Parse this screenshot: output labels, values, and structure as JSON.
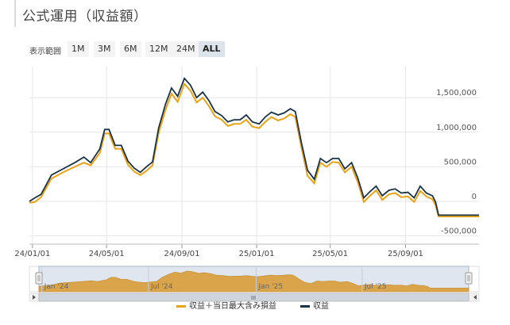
{
  "header": {
    "title": "公式運用（収益額）"
  },
  "range_selector": {
    "label": "表示範囲",
    "buttons": [
      {
        "label": "1M",
        "active": false
      },
      {
        "label": "3M",
        "active": false
      },
      {
        "label": "6M",
        "active": false
      },
      {
        "label": "12M",
        "active": false
      },
      {
        "label": "24M",
        "active": false
      },
      {
        "label": "ALL",
        "active": true
      }
    ]
  },
  "colors": {
    "profit": "#1b3346",
    "profit_with_loss": "#e8a317",
    "navigator_fill": "#d9a44a",
    "navigator_bg": "#dfe6f0"
  },
  "chart_data": {
    "type": "line",
    "title": "",
    "xlabel": "",
    "ylabel": "",
    "x_tick_labels": [
      "24/01/01",
      "24/05/01",
      "24/09/01",
      "25/01/01",
      "25/05/01",
      "25/09/01"
    ],
    "x_ticks": [
      "2024-01-01",
      "2024-05-01",
      "2024-09-01",
      "2025-01-01",
      "2025-05-01",
      "2025-09-01"
    ],
    "y_tick_labels": [
      "1,500,000",
      "1,000,000",
      "500,000",
      "0",
      "-500,000"
    ],
    "y_ticks": [
      1500000,
      1000000,
      500000,
      0,
      -500000
    ],
    "xlim": [
      "2023-12-27",
      "2025-12-30"
    ],
    "ylim": [
      -620000,
      1950000
    ],
    "legend_position": "bottom",
    "navigator_labels": [
      "Jan '24",
      "Jul '24",
      "Jan '25",
      "Jul '25"
    ],
    "navigator_scroll_glyph": "III",
    "series": [
      {
        "name": "収益",
        "dates": [
          "2023-12-27",
          "2024-01-05",
          "2024-01-15",
          "2024-02-01",
          "2024-02-20",
          "2024-03-10",
          "2024-03-25",
          "2024-04-05",
          "2024-04-20",
          "2024-04-28",
          "2024-05-05",
          "2024-05-15",
          "2024-05-25",
          "2024-06-05",
          "2024-06-15",
          "2024-06-25",
          "2024-07-05",
          "2024-07-15",
          "2024-07-25",
          "2024-08-05",
          "2024-08-15",
          "2024-08-25",
          "2024-09-05",
          "2024-09-15",
          "2024-09-25",
          "2024-10-05",
          "2024-10-15",
          "2024-10-25",
          "2024-11-05",
          "2024-11-15",
          "2024-11-25",
          "2024-12-05",
          "2024-12-15",
          "2024-12-25",
          "2025-01-05",
          "2025-01-15",
          "2025-01-25",
          "2025-02-05",
          "2025-02-15",
          "2025-02-25",
          "2025-03-05",
          "2025-03-15",
          "2025-03-25",
          "2025-04-05",
          "2025-04-15",
          "2025-04-25",
          "2025-05-05",
          "2025-05-15",
          "2025-05-25",
          "2025-06-05",
          "2025-06-15",
          "2025-06-25",
          "2025-07-05",
          "2025-07-15",
          "2025-07-25",
          "2025-08-05",
          "2025-08-15",
          "2025-08-25",
          "2025-09-05",
          "2025-09-15",
          "2025-09-25",
          "2025-10-05",
          "2025-10-15",
          "2025-10-20",
          "2025-10-25",
          "2025-12-30"
        ],
        "values": [
          0,
          50000,
          100000,
          380000,
          470000,
          560000,
          640000,
          560000,
          760000,
          1040000,
          1040000,
          810000,
          810000,
          580000,
          480000,
          420000,
          500000,
          570000,
          1060000,
          1400000,
          1640000,
          1520000,
          1780000,
          1680000,
          1500000,
          1580000,
          1460000,
          1300000,
          1240000,
          1150000,
          1180000,
          1180000,
          1250000,
          1150000,
          1120000,
          1220000,
          1290000,
          1250000,
          1280000,
          1340000,
          1300000,
          850000,
          450000,
          320000,
          620000,
          560000,
          620000,
          620000,
          470000,
          560000,
          340000,
          50000,
          140000,
          220000,
          80000,
          160000,
          180000,
          120000,
          130000,
          50000,
          220000,
          120000,
          80000,
          -10000,
          -200000,
          -200000
        ]
      },
      {
        "name": "収益＋当日最大含み損益",
        "dates": [
          "2023-12-27",
          "2024-01-05",
          "2024-01-15",
          "2024-02-01",
          "2024-02-20",
          "2024-03-10",
          "2024-03-25",
          "2024-04-05",
          "2024-04-20",
          "2024-04-28",
          "2024-05-05",
          "2024-05-15",
          "2024-05-25",
          "2024-06-05",
          "2024-06-15",
          "2024-06-25",
          "2024-07-05",
          "2024-07-15",
          "2024-07-25",
          "2024-08-05",
          "2024-08-15",
          "2024-08-25",
          "2024-09-05",
          "2024-09-15",
          "2024-09-25",
          "2024-10-05",
          "2024-10-15",
          "2024-10-25",
          "2024-11-05",
          "2024-11-15",
          "2024-11-25",
          "2024-12-05",
          "2024-12-15",
          "2024-12-25",
          "2025-01-05",
          "2025-01-15",
          "2025-01-25",
          "2025-02-05",
          "2025-02-15",
          "2025-02-25",
          "2025-03-05",
          "2025-03-15",
          "2025-03-25",
          "2025-04-05",
          "2025-04-15",
          "2025-04-25",
          "2025-05-05",
          "2025-05-15",
          "2025-05-25",
          "2025-06-05",
          "2025-06-15",
          "2025-06-25",
          "2025-07-05",
          "2025-07-15",
          "2025-07-25",
          "2025-08-05",
          "2025-08-15",
          "2025-08-25",
          "2025-09-05",
          "2025-09-15",
          "2025-09-25",
          "2025-10-05",
          "2025-10-15",
          "2025-10-20",
          "2025-10-25",
          "2025-12-30"
        ],
        "values": [
          -20000,
          -10000,
          60000,
          330000,
          420000,
          500000,
          560000,
          520000,
          700000,
          980000,
          980000,
          760000,
          760000,
          530000,
          430000,
          380000,
          440000,
          520000,
          990000,
          1320000,
          1560000,
          1440000,
          1700000,
          1600000,
          1430000,
          1500000,
          1380000,
          1230000,
          1180000,
          1090000,
          1120000,
          1120000,
          1180000,
          1080000,
          1060000,
          1150000,
          1220000,
          1170000,
          1200000,
          1260000,
          1220000,
          780000,
          370000,
          260000,
          560000,
          500000,
          570000,
          560000,
          420000,
          500000,
          280000,
          -10000,
          80000,
          160000,
          20000,
          100000,
          120000,
          60000,
          70000,
          -10000,
          150000,
          70000,
          30000,
          -60000,
          -220000,
          -220000
        ]
      }
    ]
  }
}
